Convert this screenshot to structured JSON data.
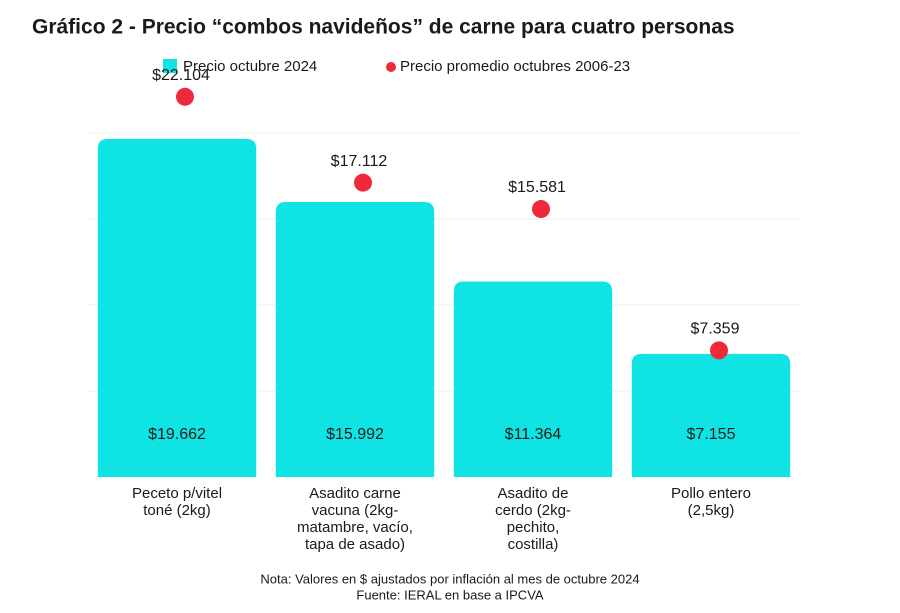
{
  "chart_data": {
    "type": "bar",
    "title": "Gráfico 2 - Precio “combos navideños” de carne para cuatro personas",
    "categories": [
      "Peceto p/vitel\ntoné (2kg)",
      "Asadito carne\nvacuna (2kg-\nmatambre, vacío,\ntapa de asado)",
      "Asadito de\ncerdo (2kg-\npechito,\ncostilla)",
      "Pollo entero\n(2,5kg)"
    ],
    "series": [
      {
        "name": "Precio octubre 2024",
        "color": "#10e3e3",
        "values": [
          19662,
          15992,
          11364,
          7155
        ],
        "value_labels": [
          "$19.662",
          "$15.992",
          "$11.364",
          "$7.155"
        ]
      },
      {
        "name": "Precio promedio octubres 2006-23",
        "type": "scatter",
        "color": "#ee2a3a",
        "values": [
          22104,
          17112,
          15581,
          7359
        ],
        "value_labels": [
          "$22.104",
          "$17.112",
          "$15.581",
          "$7.359"
        ]
      }
    ],
    "ylim": [
      0,
      22500
    ],
    "yticks": [
      5000,
      10000,
      15000,
      20000
    ],
    "grid": true,
    "notes": [
      "Nota: Valores en $ ajustados por inflación al mes de octubre 2024",
      "Fuente: IERAL en base a IPCVA"
    ]
  }
}
